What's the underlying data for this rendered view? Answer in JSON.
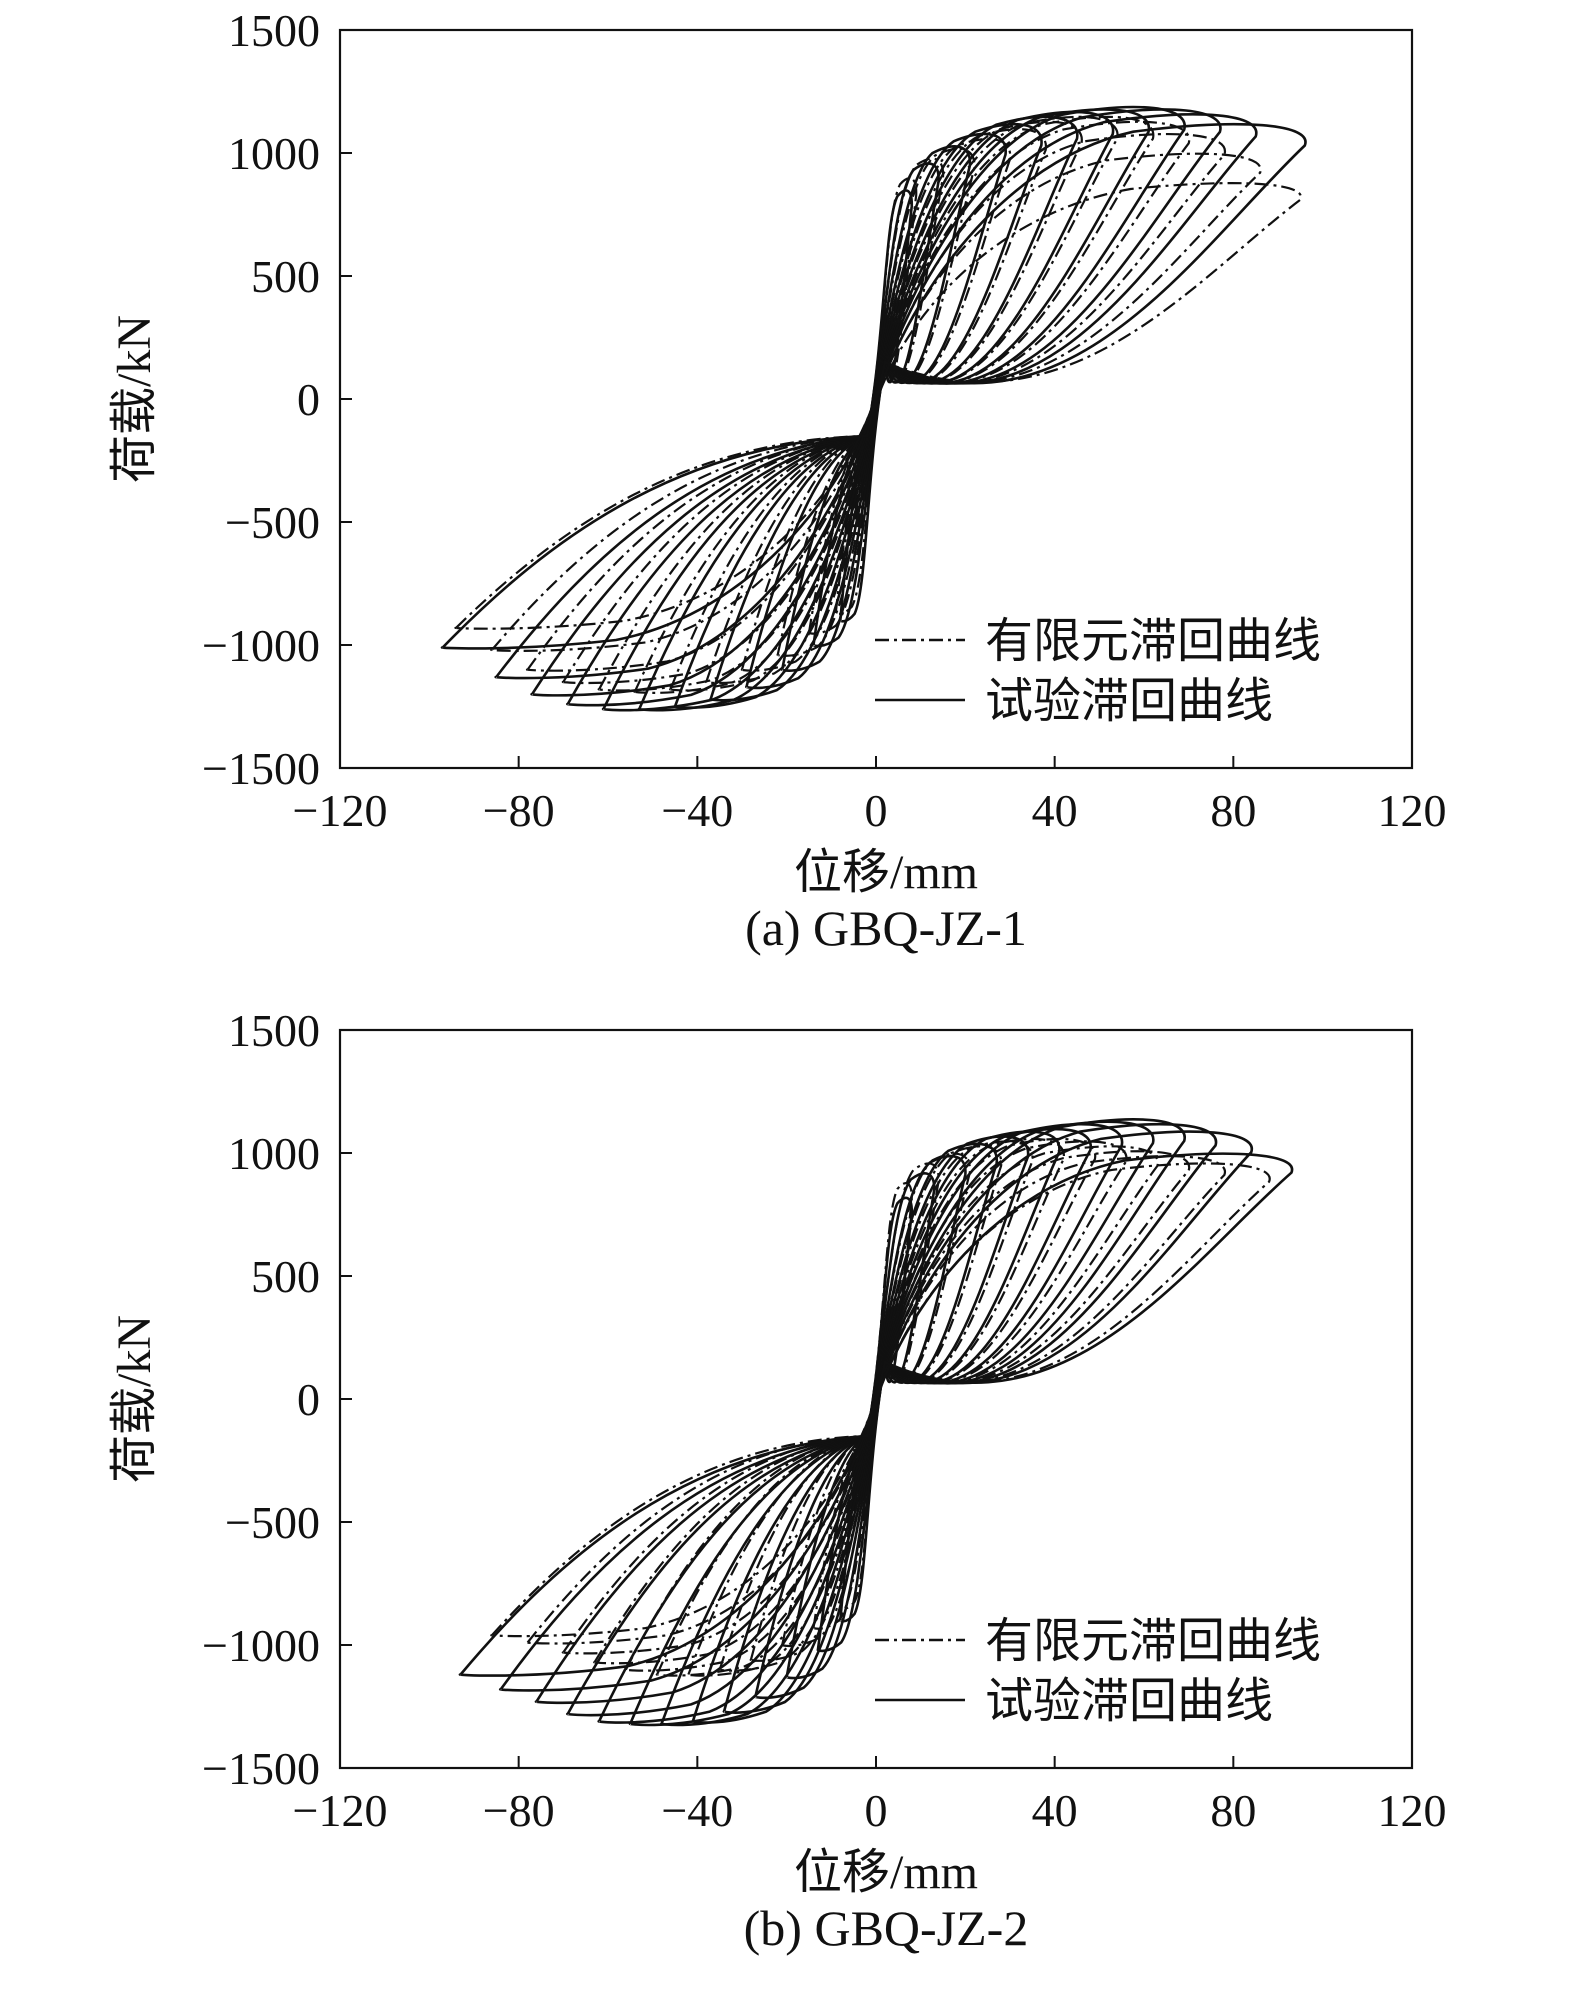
{
  "chart_data": [
    {
      "type": "line",
      "title": "(a) GBQ-JZ-1",
      "xlabel": "位移/mm",
      "ylabel": "荷载/kN",
      "xlim": [
        -120,
        120
      ],
      "ylim": [
        -1500,
        1500
      ],
      "x_ticks": [
        "−120",
        "−80",
        "−40",
        "0",
        "40",
        "80",
        "120"
      ],
      "y_ticks": [
        "1500",
        "1000",
        "500",
        "0",
        "−500",
        "−1000",
        "−1500"
      ],
      "x_tick_values": [
        -120,
        -80,
        -40,
        0,
        40,
        80,
        120
      ],
      "y_tick_values": [
        1500,
        1000,
        500,
        0,
        -500,
        -1000,
        -1500
      ],
      "grid": false,
      "legend_position": "bottom-right",
      "series": [
        {
          "name": "有限元滞回曲线",
          "style": "dash-dot",
          "color": "#111111",
          "cycles": [
            {
              "d_pos": 9,
              "f_pos": 900,
              "d_neg": -9,
              "f_neg": -870
            },
            {
              "d_pos": 15,
              "f_pos": 980,
              "d_neg": -15,
              "f_neg": -950
            },
            {
              "d_pos": 22,
              "f_pos": 1020,
              "d_neg": -22,
              "f_neg": -1040
            },
            {
              "d_pos": 30,
              "f_pos": 1060,
              "d_neg": -30,
              "f_neg": -1100
            },
            {
              "d_pos": 38,
              "f_pos": 1100,
              "d_neg": -38,
              "f_neg": -1150
            },
            {
              "d_pos": 46,
              "f_pos": 1130,
              "d_neg": -46,
              "f_neg": -1180
            },
            {
              "d_pos": 54,
              "f_pos": 1150,
              "d_neg": -54,
              "f_neg": -1190
            },
            {
              "d_pos": 62,
              "f_pos": 1150,
              "d_neg": -62,
              "f_neg": -1180
            },
            {
              "d_pos": 70,
              "f_pos": 1130,
              "d_neg": -70,
              "f_neg": -1150
            },
            {
              "d_pos": 78,
              "f_pos": 1080,
              "d_neg": -78,
              "f_neg": -1100
            },
            {
              "d_pos": 86,
              "f_pos": 1000,
              "d_neg": -86,
              "f_neg": -1020
            },
            {
              "d_pos": 95,
              "f_pos": 880,
              "d_neg": -94,
              "f_neg": -930
            }
          ]
        },
        {
          "name": "试验滞回曲线",
          "style": "solid",
          "color": "#111111",
          "cycles": [
            {
              "d_pos": 8,
              "f_pos": 850,
              "d_neg": -8,
              "f_neg": -900
            },
            {
              "d_pos": 14,
              "f_pos": 960,
              "d_neg": -14,
              "f_neg": -1000
            },
            {
              "d_pos": 21,
              "f_pos": 1030,
              "d_neg": -21,
              "f_neg": -1100
            },
            {
              "d_pos": 29,
              "f_pos": 1080,
              "d_neg": -29,
              "f_neg": -1170
            },
            {
              "d_pos": 37,
              "f_pos": 1120,
              "d_neg": -37,
              "f_neg": -1220
            },
            {
              "d_pos": 45,
              "f_pos": 1150,
              "d_neg": -45,
              "f_neg": -1250
            },
            {
              "d_pos": 53,
              "f_pos": 1170,
              "d_neg": -53,
              "f_neg": -1260
            },
            {
              "d_pos": 61,
              "f_pos": 1180,
              "d_neg": -61,
              "f_neg": -1260
            },
            {
              "d_pos": 69,
              "f_pos": 1190,
              "d_neg": -69,
              "f_neg": -1240
            },
            {
              "d_pos": 77,
              "f_pos": 1180,
              "d_neg": -77,
              "f_neg": -1200
            },
            {
              "d_pos": 85,
              "f_pos": 1160,
              "d_neg": -85,
              "f_neg": -1130
            },
            {
              "d_pos": 96,
              "f_pos": 1120,
              "d_neg": -97,
              "f_neg": -1010
            }
          ]
        }
      ]
    },
    {
      "type": "line",
      "title": "(b) GBQ-JZ-2",
      "xlabel": "位移/mm",
      "ylabel": "荷载/kN",
      "xlim": [
        -120,
        120
      ],
      "ylim": [
        -1500,
        1500
      ],
      "x_ticks": [
        "−120",
        "−80",
        "−40",
        "0",
        "40",
        "80",
        "120"
      ],
      "y_ticks": [
        "1500",
        "1000",
        "500",
        "0",
        "−500",
        "−1000",
        "−1500"
      ],
      "x_tick_values": [
        -120,
        -80,
        -40,
        0,
        40,
        80,
        120
      ],
      "y_tick_values": [
        1500,
        1000,
        500,
        0,
        -500,
        -1000,
        -1500
      ],
      "grid": false,
      "legend_position": "bottom-right",
      "series": [
        {
          "name": "有限元滞回曲线",
          "style": "dash-dot",
          "color": "#111111",
          "cycles": [
            {
              "d_pos": 8,
              "f_pos": 880,
              "d_neg": -8,
              "f_neg": -850
            },
            {
              "d_pos": 14,
              "f_pos": 960,
              "d_neg": -14,
              "f_neg": -930
            },
            {
              "d_pos": 21,
              "f_pos": 1000,
              "d_neg": -21,
              "f_neg": -1000
            },
            {
              "d_pos": 28,
              "f_pos": 1030,
              "d_neg": -28,
              "f_neg": -1060
            },
            {
              "d_pos": 35,
              "f_pos": 1050,
              "d_neg": -35,
              "f_neg": -1100
            },
            {
              "d_pos": 42,
              "f_pos": 1060,
              "d_neg": -42,
              "f_neg": -1120
            },
            {
              "d_pos": 49,
              "f_pos": 1060,
              "d_neg": -49,
              "f_neg": -1120
            },
            {
              "d_pos": 56,
              "f_pos": 1050,
              "d_neg": -56,
              "f_neg": -1100
            },
            {
              "d_pos": 63,
              "f_pos": 1030,
              "d_neg": -63,
              "f_neg": -1070
            },
            {
              "d_pos": 70,
              "f_pos": 1010,
              "d_neg": -70,
              "f_neg": -1030
            },
            {
              "d_pos": 78,
              "f_pos": 990,
              "d_neg": -78,
              "f_neg": -990
            },
            {
              "d_pos": 88,
              "f_pos": 960,
              "d_neg": -86,
              "f_neg": -960
            }
          ]
        },
        {
          "name": "试验滞回曲线",
          "style": "solid",
          "color": "#111111",
          "cycles": [
            {
              "d_pos": 8,
              "f_pos": 820,
              "d_neg": -8,
              "f_neg": -900
            },
            {
              "d_pos": 13,
              "f_pos": 920,
              "d_neg": -13,
              "f_neg": -1020
            },
            {
              "d_pos": 20,
              "f_pos": 990,
              "d_neg": -20,
              "f_neg": -1130
            },
            {
              "d_pos": 27,
              "f_pos": 1040,
              "d_neg": -27,
              "f_neg": -1210
            },
            {
              "d_pos": 34,
              "f_pos": 1070,
              "d_neg": -34,
              "f_neg": -1270
            },
            {
              "d_pos": 41,
              "f_pos": 1090,
              "d_neg": -41,
              "f_neg": -1310
            },
            {
              "d_pos": 48,
              "f_pos": 1100,
              "d_neg": -48,
              "f_neg": -1320
            },
            {
              "d_pos": 55,
              "f_pos": 1120,
              "d_neg": -55,
              "f_neg": -1320
            },
            {
              "d_pos": 62,
              "f_pos": 1130,
              "d_neg": -62,
              "f_neg": -1310
            },
            {
              "d_pos": 69,
              "f_pos": 1140,
              "d_neg": -69,
              "f_neg": -1280
            },
            {
              "d_pos": 76,
              "f_pos": 1120,
              "d_neg": -76,
              "f_neg": -1230
            },
            {
              "d_pos": 84,
              "f_pos": 1090,
              "d_neg": -84,
              "f_neg": -1180
            },
            {
              "d_pos": 93,
              "f_pos": 1000,
              "d_neg": -93,
              "f_neg": -1120
            }
          ]
        }
      ]
    }
  ]
}
